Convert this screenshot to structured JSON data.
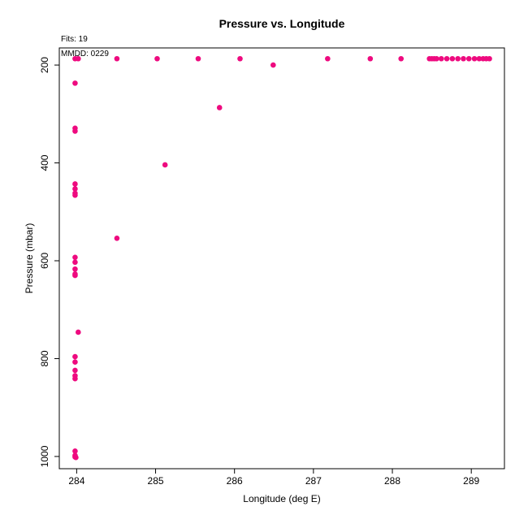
{
  "chart_data": {
    "type": "scatter",
    "title": "Pressure vs. Longitude",
    "subtitle_fits": "Fits: 19",
    "annotation_mmdd": "MMDD: 0229",
    "xlabel": "Longitude (deg E)",
    "ylabel": "Pressure (mbar)",
    "xlim": [
      283.78,
      289.42
    ],
    "ylim": [
      1025,
      165
    ],
    "y_inverted": true,
    "xticks": [
      284,
      285,
      286,
      287,
      288,
      289
    ],
    "yticks": [
      200,
      400,
      600,
      800,
      1000
    ],
    "grid": false,
    "point_color": "#ee0a7f",
    "points": [
      {
        "x": 283.98,
        "y": 187
      },
      {
        "x": 284.02,
        "y": 187
      },
      {
        "x": 284.51,
        "y": 187
      },
      {
        "x": 285.02,
        "y": 187
      },
      {
        "x": 285.54,
        "y": 187
      },
      {
        "x": 286.07,
        "y": 187
      },
      {
        "x": 286.49,
        "y": 200
      },
      {
        "x": 287.18,
        "y": 187
      },
      {
        "x": 287.72,
        "y": 187
      },
      {
        "x": 288.11,
        "y": 187
      },
      {
        "x": 288.47,
        "y": 187
      },
      {
        "x": 288.5,
        "y": 187
      },
      {
        "x": 288.53,
        "y": 187
      },
      {
        "x": 288.56,
        "y": 187
      },
      {
        "x": 288.62,
        "y": 187
      },
      {
        "x": 288.69,
        "y": 187
      },
      {
        "x": 288.76,
        "y": 187
      },
      {
        "x": 288.83,
        "y": 187
      },
      {
        "x": 288.9,
        "y": 187
      },
      {
        "x": 288.97,
        "y": 187
      },
      {
        "x": 289.04,
        "y": 187
      },
      {
        "x": 289.1,
        "y": 187
      },
      {
        "x": 289.15,
        "y": 187
      },
      {
        "x": 289.19,
        "y": 187
      },
      {
        "x": 289.23,
        "y": 187
      },
      {
        "x": 283.98,
        "y": 237
      },
      {
        "x": 285.81,
        "y": 287
      },
      {
        "x": 283.98,
        "y": 329
      },
      {
        "x": 283.98,
        "y": 335
      },
      {
        "x": 285.12,
        "y": 404
      },
      {
        "x": 283.98,
        "y": 443
      },
      {
        "x": 283.98,
        "y": 453
      },
      {
        "x": 283.98,
        "y": 462
      },
      {
        "x": 283.98,
        "y": 466
      },
      {
        "x": 284.51,
        "y": 554
      },
      {
        "x": 283.98,
        "y": 593
      },
      {
        "x": 283.98,
        "y": 603
      },
      {
        "x": 283.98,
        "y": 617
      },
      {
        "x": 283.98,
        "y": 627
      },
      {
        "x": 283.98,
        "y": 630
      },
      {
        "x": 284.02,
        "y": 746
      },
      {
        "x": 283.98,
        "y": 796
      },
      {
        "x": 283.98,
        "y": 807
      },
      {
        "x": 283.98,
        "y": 824
      },
      {
        "x": 283.98,
        "y": 835
      },
      {
        "x": 283.98,
        "y": 841
      },
      {
        "x": 283.98,
        "y": 989
      },
      {
        "x": 283.98,
        "y": 998
      },
      {
        "x": 283.98,
        "y": 1001
      },
      {
        "x": 283.99,
        "y": 1002
      }
    ]
  }
}
